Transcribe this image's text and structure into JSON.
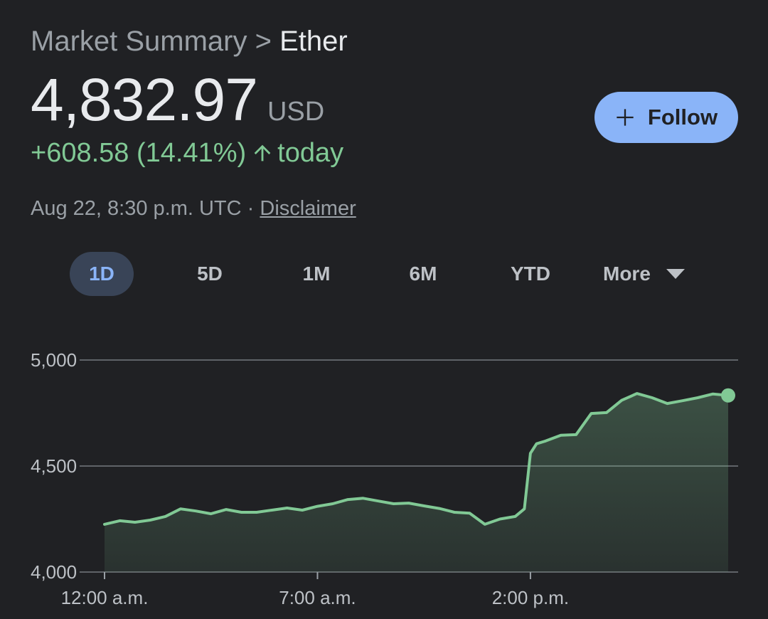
{
  "header": {
    "breadcrumb_parent": "Market Summary",
    "breadcrumb_separator": ">",
    "breadcrumb_current": "Ether"
  },
  "quote": {
    "price": "4,832.97",
    "currency": "USD",
    "change": "+608.58 (14.41%)",
    "change_period": "today",
    "direction_icon": "arrow-up-icon",
    "timestamp": "Aug 22, 8:30 p.m. UTC",
    "meta_separator": "·",
    "disclaimer_label": "Disclaimer"
  },
  "follow_button": {
    "icon": "plus-icon",
    "label": "Follow"
  },
  "range_tabs": {
    "items": [
      "1D",
      "5D",
      "1M",
      "6M",
      "YTD"
    ],
    "selected": "1D",
    "more_label": "More"
  },
  "colors": {
    "background": "#202124",
    "positive": "#81c995",
    "accent": "#8ab4f8",
    "tab_active_bg": "#394457"
  },
  "chart_data": {
    "type": "area",
    "title": "",
    "xlabel": "",
    "ylabel": "",
    "ylim": [
      4000,
      5000
    ],
    "yticks": [
      5000,
      4500,
      4000
    ],
    "ytick_labels": [
      "5,000",
      "4,500",
      "4,000"
    ],
    "xticks": [
      0,
      7,
      14
    ],
    "xtick_labels": [
      "12:00 a.m.",
      "7:00 a.m.",
      "2:00 p.m."
    ],
    "xlim": [
      0,
      20.5
    ],
    "grid": true,
    "series": [
      {
        "x": [
          0,
          0.5,
          1,
          1.5,
          2,
          2.5,
          3,
          3.5,
          4,
          4.5,
          5,
          5.5,
          6,
          6.5,
          7,
          7.5,
          8,
          8.5,
          9,
          9.5,
          10,
          10.5,
          11,
          11.5,
          12,
          12.5,
          13,
          13.5,
          13.8,
          14,
          14.2,
          14.5,
          15,
          15.5,
          16,
          16.5,
          17,
          17.5,
          18,
          18.5,
          19,
          19.5,
          20,
          20.5
        ],
        "y": [
          4225,
          4242,
          4235,
          4245,
          4262,
          4298,
          4288,
          4275,
          4295,
          4282,
          4282,
          4292,
          4302,
          4292,
          4310,
          4322,
          4342,
          4348,
          4335,
          4322,
          4325,
          4312,
          4300,
          4282,
          4278,
          4225,
          4250,
          4262,
          4298,
          4560,
          4605,
          4618,
          4645,
          4648,
          4748,
          4752,
          4810,
          4842,
          4822,
          4795,
          4808,
          4822,
          4840,
          4833
        ]
      }
    ],
    "last_point": {
      "x": 20.5,
      "y": 4833
    }
  }
}
